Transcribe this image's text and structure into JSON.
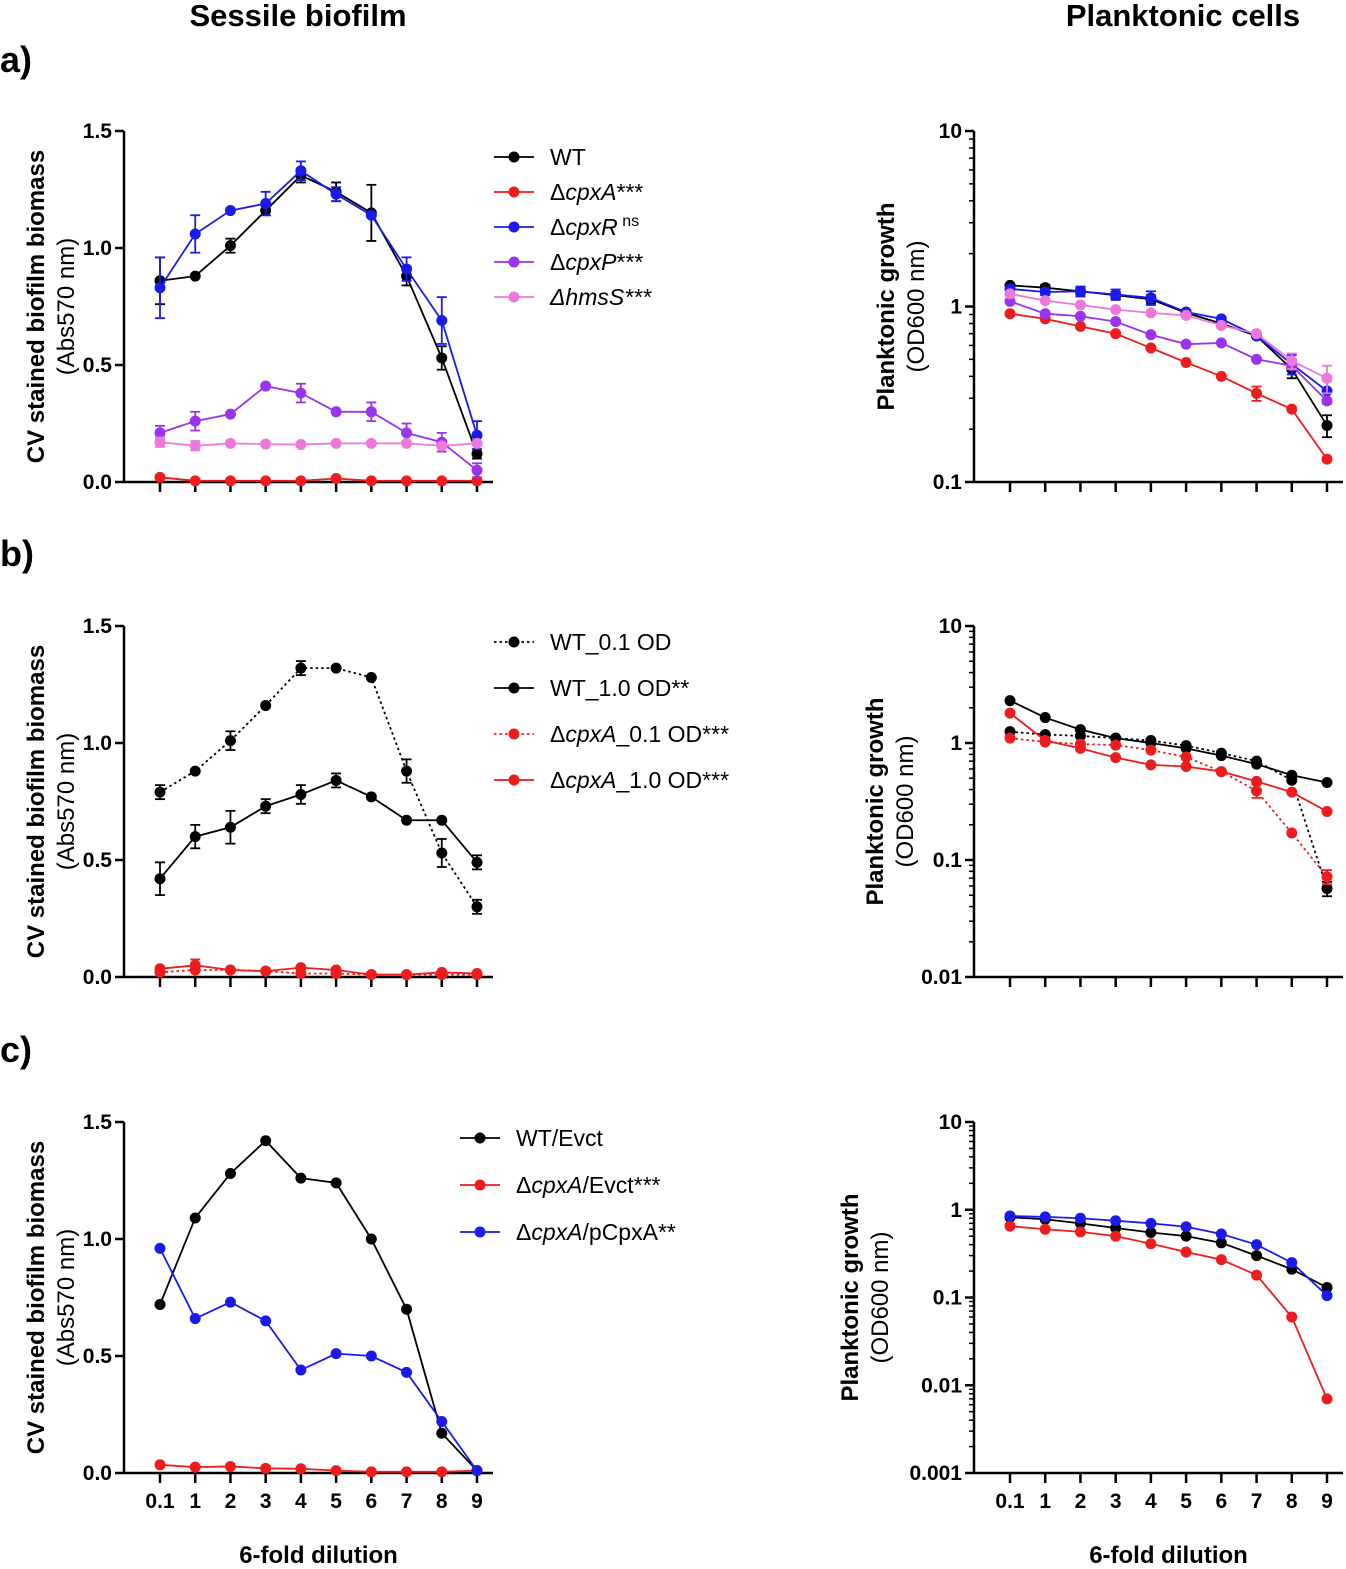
{
  "figure": {
    "column_titles": [
      "Sessile biofilm",
      "Planktonic cells"
    ],
    "panel_labels": [
      "a)",
      "b)",
      "c)"
    ],
    "xlabel": "6-fold dilution"
  },
  "colors": {
    "black": "#000000",
    "red": "#ee1c1c",
    "blue": "#1a1aee",
    "purple": "#9933ee",
    "pink": "#ee77dd"
  },
  "chart_data": [
    {
      "id": "a-biofilm",
      "panel": "a)",
      "type": "line",
      "title": "Sessile biofilm",
      "ylabel": [
        "CV stained biofilm biomass",
        "(Abs570 nm)"
      ],
      "xlabel": "",
      "scale": "linear",
      "ylim": [
        0,
        1.5
      ],
      "yticks": [
        "0.0",
        "0.5",
        "1.0",
        "1.5"
      ],
      "ytick_values": [
        0,
        0.5,
        1.0,
        1.5
      ],
      "categories": [
        "0.1",
        "1",
        "2",
        "3",
        "4",
        "5",
        "6",
        "7",
        "8",
        "9"
      ],
      "show_xtick_labels": false,
      "series": [
        {
          "name": "WT",
          "legend": [
            {
              "t": "WT"
            }
          ],
          "color": "black",
          "dash": false,
          "values": [
            0.86,
            0.88,
            1.01,
            1.16,
            1.31,
            1.24,
            1.15,
            0.88,
            0.53,
            0.12
          ],
          "errors": [
            0.1,
            0.0,
            0.03,
            0.02,
            0.03,
            0.04,
            0.12,
            0.04,
            0.05,
            0.02
          ]
        },
        {
          "name": "ΔcpxA***",
          "legend": [
            {
              "t": "Δ"
            },
            {
              "t": "cpxA",
              "i": true
            },
            {
              "t": "***"
            }
          ],
          "color": "red",
          "dash": false,
          "values": [
            0.02,
            0.005,
            0.005,
            0.005,
            0.005,
            0.015,
            0.005,
            0.005,
            0.005,
            0.005
          ],
          "errors": [
            0,
            0,
            0,
            0,
            0,
            0,
            0,
            0,
            0,
            0
          ]
        },
        {
          "name": "ΔcpxR ns",
          "legend": [
            {
              "t": "Δ"
            },
            {
              "t": "cpxR",
              "i": true
            },
            {
              "t": " ns",
              "sup": true
            }
          ],
          "color": "blue",
          "dash": false,
          "values": [
            0.83,
            1.06,
            1.16,
            1.19,
            1.33,
            1.23,
            1.14,
            0.91,
            0.69,
            0.2
          ],
          "errors": [
            0.13,
            0.08,
            0.0,
            0.05,
            0.04,
            0.03,
            0.0,
            0.05,
            0.1,
            0.06
          ]
        },
        {
          "name": "ΔcpxP***",
          "legend": [
            {
              "t": "Δ"
            },
            {
              "t": "cpxP",
              "i": true
            },
            {
              "t": "***"
            }
          ],
          "color": "purple",
          "dash": false,
          "values": [
            0.21,
            0.26,
            0.29,
            0.41,
            0.38,
            0.3,
            0.3,
            0.21,
            0.17,
            0.05
          ],
          "errors": [
            0.03,
            0.04,
            0.0,
            0.0,
            0.04,
            0.0,
            0.04,
            0.04,
            0.04,
            0.03
          ]
        },
        {
          "name": "ΔhmsS***",
          "legend": [
            {
              "t": "ΔhmsS***",
              "i": true
            }
          ],
          "color": "pink",
          "dash": false,
          "values": [
            0.17,
            0.155,
            0.165,
            0.162,
            0.16,
            0.165,
            0.165,
            0.165,
            0.155,
            0.165
          ],
          "errors": [
            0.02,
            0.02,
            0.0,
            0.0,
            0.0,
            0.0,
            0.0,
            0.0,
            0.0,
            0.0
          ]
        }
      ]
    },
    {
      "id": "a-planktonic",
      "panel": "a)",
      "type": "line",
      "title": "Planktonic cells",
      "ylabel": [
        "Planktonic growth",
        "(OD600 nm)"
      ],
      "xlabel": "",
      "scale": "log",
      "ylim": [
        0.1,
        10
      ],
      "yticks": [
        "0.1",
        "1",
        "10"
      ],
      "ytick_values": [
        0.1,
        1,
        10
      ],
      "categories": [
        "0.1",
        "1",
        "2",
        "3",
        "4",
        "5",
        "6",
        "7",
        "8",
        "9"
      ],
      "show_xtick_labels": false,
      "series": [
        {
          "name": "WT",
          "color": "black",
          "dash": false,
          "values": [
            1.32,
            1.28,
            1.22,
            1.16,
            1.1,
            0.92,
            0.8,
            0.68,
            0.44,
            0.21
          ],
          "errors": [
            0.0,
            0.05,
            0.05,
            0.05,
            0.06,
            0.0,
            0.04,
            0.0,
            0.05,
            0.03
          ]
        },
        {
          "name": "ΔcpxA***",
          "color": "red",
          "dash": false,
          "values": [
            0.91,
            0.85,
            0.77,
            0.7,
            0.58,
            0.48,
            0.4,
            0.32,
            0.26,
            0.135
          ],
          "errors": [
            0,
            0,
            0,
            0,
            0,
            0,
            0,
            0.03,
            0,
            0
          ]
        },
        {
          "name": "ΔcpxR ns",
          "color": "blue",
          "dash": false,
          "values": [
            1.26,
            1.21,
            1.22,
            1.17,
            1.12,
            0.93,
            0.85,
            0.68,
            0.47,
            0.33
          ],
          "errors": [
            0,
            0.05,
            0.08,
            0.08,
            0.1,
            0,
            0,
            0,
            0.06,
            0.05
          ]
        },
        {
          "name": "ΔcpxP***",
          "color": "purple",
          "dash": false,
          "values": [
            1.07,
            0.91,
            0.88,
            0.82,
            0.69,
            0.61,
            0.62,
            0.5,
            0.46,
            0.29
          ],
          "errors": [
            0,
            0,
            0,
            0,
            0,
            0,
            0,
            0,
            0,
            0
          ]
        },
        {
          "name": "ΔhmsS***",
          "color": "pink",
          "dash": false,
          "values": [
            1.18,
            1.08,
            1.02,
            0.96,
            0.92,
            0.89,
            0.78,
            0.7,
            0.49,
            0.39
          ],
          "errors": [
            0,
            0,
            0,
            0,
            0,
            0,
            0,
            0,
            0.05,
            0.07
          ]
        }
      ]
    },
    {
      "id": "b-biofilm",
      "panel": "b)",
      "type": "line",
      "title": "",
      "ylabel": [
        "CV stained biofilm biomass",
        "(Abs570 nm)"
      ],
      "xlabel": "",
      "scale": "linear",
      "ylim": [
        0,
        1.5
      ],
      "yticks": [
        "0.0",
        "0.5",
        "1.0",
        "1.5"
      ],
      "ytick_values": [
        0,
        0.5,
        1.0,
        1.5
      ],
      "categories": [
        "0.1",
        "1",
        "2",
        "3",
        "4",
        "5",
        "6",
        "7",
        "8",
        "9"
      ],
      "show_xtick_labels": false,
      "series": [
        {
          "name": "WT_0.1 OD",
          "legend": [
            {
              "t": "WT_0.1 OD"
            }
          ],
          "color": "black",
          "dash": true,
          "values": [
            0.79,
            0.88,
            1.01,
            1.16,
            1.32,
            1.32,
            1.28,
            0.88,
            0.53,
            0.3
          ],
          "errors": [
            0.03,
            0.0,
            0.04,
            0.0,
            0.03,
            0.0,
            0.0,
            0.05,
            0.06,
            0.03
          ]
        },
        {
          "name": "WT_1.0 OD**",
          "legend": [
            {
              "t": " WT_1.0 OD**"
            }
          ],
          "color": "black",
          "dash": false,
          "values": [
            0.42,
            0.6,
            0.64,
            0.73,
            0.78,
            0.84,
            0.77,
            0.67,
            0.67,
            0.49
          ],
          "errors": [
            0.07,
            0.05,
            0.07,
            0.03,
            0.04,
            0.03,
            0.0,
            0.0,
            0.0,
            0.03
          ]
        },
        {
          "name": "ΔcpxA_0.1 OD***",
          "legend": [
            {
              "t": "Δ"
            },
            {
              "t": "cpxA",
              "i": true
            },
            {
              "t": "_0.1 OD***"
            }
          ],
          "color": "red",
          "dash": true,
          "values": [
            0.02,
            0.03,
            0.03,
            0.025,
            0.015,
            0.015,
            0.01,
            0.01,
            0.01,
            0.01
          ],
          "errors": [
            0,
            0,
            0,
            0,
            0,
            0,
            0,
            0,
            0,
            0
          ]
        },
        {
          "name": "ΔcpxA_1.0 OD***",
          "legend": [
            {
              "t": "Δ"
            },
            {
              "t": "cpxA",
              "i": true
            },
            {
              "t": "_1.0 OD***"
            }
          ],
          "color": "red",
          "dash": false,
          "values": [
            0.035,
            0.05,
            0.03,
            0.025,
            0.04,
            0.03,
            0.01,
            0.01,
            0.02,
            0.015
          ],
          "errors": [
            0,
            0.025,
            0,
            0,
            0,
            0,
            0,
            0,
            0,
            0
          ]
        }
      ]
    },
    {
      "id": "b-planktonic",
      "panel": "b)",
      "type": "line",
      "title": "",
      "ylabel": [
        "Planktonic growth",
        "(OD600 nm)"
      ],
      "xlabel": "",
      "scale": "log",
      "ylim": [
        0.01,
        10
      ],
      "yticks": [
        "0.01",
        "0.1",
        "1",
        "10"
      ],
      "ytick_values": [
        0.01,
        0.1,
        1,
        10
      ],
      "categories": [
        "0.1",
        "1",
        "2",
        "3",
        "4",
        "5",
        "6",
        "7",
        "8",
        "9"
      ],
      "show_xtick_labels": false,
      "series": [
        {
          "name": "WT_0.1 OD",
          "color": "black",
          "dash": true,
          "values": [
            1.25,
            1.18,
            1.15,
            1.1,
            1.05,
            0.95,
            0.82,
            0.7,
            0.48,
            0.057
          ],
          "errors": [
            0,
            0,
            0,
            0,
            0,
            0,
            0,
            0,
            0,
            0.008
          ]
        },
        {
          "name": "WT_1.0 OD**",
          "color": "black",
          "dash": false,
          "values": [
            2.3,
            1.65,
            1.3,
            1.1,
            1.0,
            0.9,
            0.78,
            0.66,
            0.53,
            0.46
          ],
          "errors": [
            0,
            0,
            0,
            0,
            0,
            0,
            0,
            0,
            0,
            0
          ]
        },
        {
          "name": "ΔcpxA_0.1 OD***",
          "color": "red",
          "dash": true,
          "values": [
            1.1,
            1.02,
            0.98,
            0.96,
            0.87,
            0.76,
            0.57,
            0.39,
            0.17,
            0.072
          ],
          "errors": [
            0,
            0,
            0,
            0,
            0,
            0,
            0,
            0.05,
            0,
            0.01
          ]
        },
        {
          "name": "ΔcpxA_1.0 OD***",
          "color": "red",
          "dash": false,
          "values": [
            1.8,
            1.05,
            0.9,
            0.75,
            0.65,
            0.63,
            0.57,
            0.47,
            0.38,
            0.26
          ],
          "errors": [
            0,
            0,
            0,
            0,
            0,
            0,
            0,
            0,
            0,
            0
          ]
        }
      ]
    },
    {
      "id": "c-biofilm",
      "panel": "c)",
      "type": "line",
      "title": "",
      "ylabel": [
        "CV stained biofilm biomass",
        "(Abs570 nm)"
      ],
      "xlabel": "6-fold dilution",
      "scale": "linear",
      "ylim": [
        0,
        1.5
      ],
      "yticks": [
        "0.0",
        "0.5",
        "1.0",
        "1.5"
      ],
      "ytick_values": [
        0,
        0.5,
        1.0,
        1.5
      ],
      "categories": [
        "0.1",
        "1",
        "2",
        "3",
        "4",
        "5",
        "6",
        "7",
        "8",
        "9"
      ],
      "show_xtick_labels": true,
      "series": [
        {
          "name": "WT/Evct",
          "legend": [
            {
              "t": "WT/Evct"
            }
          ],
          "color": "black",
          "dash": false,
          "values": [
            0.72,
            1.09,
            1.28,
            1.42,
            1.26,
            1.24,
            1.0,
            0.7,
            0.17,
            0.01
          ],
          "errors": [
            0,
            0,
            0,
            0,
            0,
            0,
            0,
            0,
            0,
            0
          ]
        },
        {
          "name": "ΔcpxA/Evct***",
          "legend": [
            {
              "t": "Δ"
            },
            {
              "t": "cpxA",
              "i": true
            },
            {
              "t": "/Evct***"
            }
          ],
          "color": "red",
          "dash": false,
          "values": [
            0.035,
            0.025,
            0.028,
            0.02,
            0.018,
            0.01,
            0.005,
            0.005,
            0.005,
            0.01
          ],
          "errors": [
            0,
            0,
            0,
            0,
            0,
            0,
            0,
            0,
            0,
            0
          ]
        },
        {
          "name": "ΔcpxA/pCpxA**",
          "legend": [
            {
              "t": "Δ"
            },
            {
              "t": "cpxA",
              "i": true
            },
            {
              "t": "/pCpxA**"
            }
          ],
          "color": "blue",
          "dash": false,
          "values": [
            0.96,
            0.66,
            0.73,
            0.65,
            0.44,
            0.51,
            0.5,
            0.43,
            0.22,
            0.01
          ],
          "errors": [
            0,
            0,
            0,
            0,
            0,
            0,
            0,
            0,
            0,
            0
          ]
        }
      ]
    },
    {
      "id": "c-planktonic",
      "panel": "c)",
      "type": "line",
      "title": "",
      "ylabel": [
        "Planktonic growth",
        "(OD600 nm)"
      ],
      "xlabel": "6-fold dilution",
      "scale": "log",
      "ylim": [
        0.001,
        10
      ],
      "yticks": [
        "0.001",
        "0.01",
        "0.1",
        "1",
        "10"
      ],
      "ytick_values": [
        0.001,
        0.01,
        0.1,
        1,
        10
      ],
      "categories": [
        "0.1",
        "1",
        "2",
        "3",
        "4",
        "5",
        "6",
        "7",
        "8",
        "9"
      ],
      "show_xtick_labels": true,
      "series": [
        {
          "name": "WT/Evct",
          "color": "black",
          "dash": false,
          "values": [
            0.82,
            0.78,
            0.7,
            0.62,
            0.55,
            0.5,
            0.42,
            0.3,
            0.21,
            0.13
          ],
          "errors": [
            0,
            0,
            0,
            0,
            0,
            0,
            0,
            0,
            0,
            0
          ]
        },
        {
          "name": "ΔcpxA/Evct***",
          "color": "red",
          "dash": false,
          "values": [
            0.65,
            0.6,
            0.56,
            0.5,
            0.41,
            0.33,
            0.27,
            0.18,
            0.06,
            0.007
          ],
          "errors": [
            0,
            0,
            0,
            0,
            0,
            0,
            0,
            0,
            0,
            0
          ]
        },
        {
          "name": "ΔcpxA/pCpxA**",
          "color": "blue",
          "dash": false,
          "values": [
            0.85,
            0.83,
            0.8,
            0.75,
            0.7,
            0.64,
            0.53,
            0.4,
            0.25,
            0.105
          ],
          "errors": [
            0,
            0,
            0,
            0,
            0,
            0,
            0,
            0,
            0,
            0
          ]
        }
      ]
    }
  ]
}
